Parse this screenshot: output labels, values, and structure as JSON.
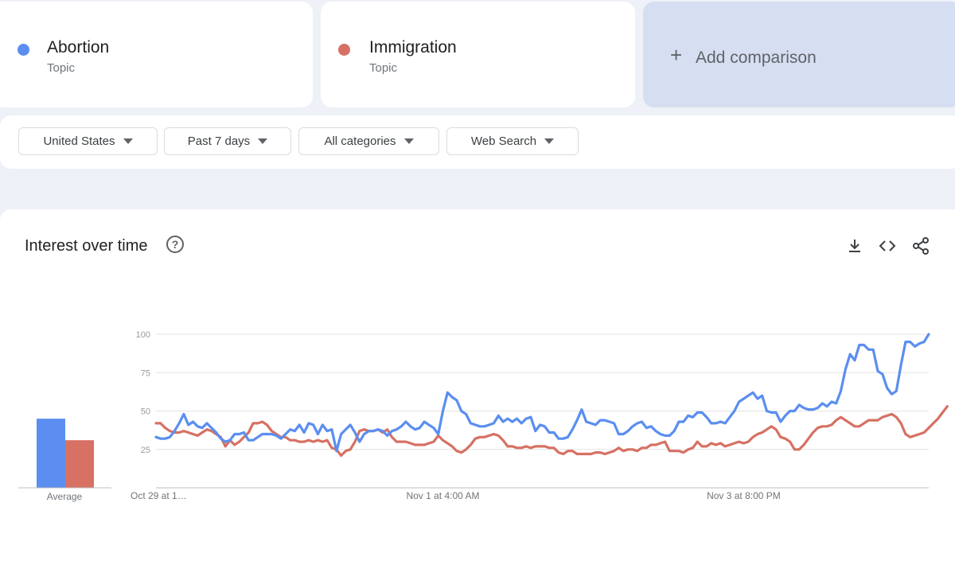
{
  "terms": [
    {
      "name": "Abortion",
      "type": "Topic",
      "color": "#5b8ef0"
    },
    {
      "name": "Immigration",
      "type": "Topic",
      "color": "#d67163"
    }
  ],
  "add_comparison": {
    "icon": "plus-icon",
    "label": "Add comparison"
  },
  "filters": [
    {
      "label": "United States",
      "icon": "caret-down-icon"
    },
    {
      "label": "Past 7 days",
      "icon": "caret-down-icon"
    },
    {
      "label": "All categories",
      "icon": "caret-down-icon"
    },
    {
      "label": "Web Search",
      "icon": "caret-down-icon"
    }
  ],
  "panel": {
    "title": "Interest over time",
    "help_icon": "help-icon",
    "actions": [
      "download-icon",
      "embed-icon",
      "share-icon"
    ]
  },
  "chart_data": {
    "type": "line",
    "ylim": [
      0,
      100
    ],
    "yticks": [
      25,
      50,
      75,
      100
    ],
    "grid": true,
    "x_tick_labels": [
      "Oct 29 at 1…",
      "Nov 1 at 4:00 AM",
      "Nov 3 at 8:00 PM"
    ],
    "average": {
      "label": "Average",
      "values": [
        {
          "series": "Abortion",
          "value": 45
        },
        {
          "series": "Immigration",
          "value": 31
        }
      ]
    },
    "series": [
      {
        "name": "Abortion",
        "color": "#5b8ef0",
        "values": [
          33,
          32,
          32,
          33,
          37,
          42,
          48,
          41,
          43,
          40,
          39,
          42,
          39,
          36,
          32,
          30,
          31,
          35,
          35,
          36,
          31,
          31,
          33,
          35,
          35,
          35,
          34,
          32,
          35,
          38,
          37,
          41,
          36,
          42,
          41,
          35,
          41,
          37,
          38,
          24,
          35,
          38,
          41,
          36,
          30,
          35,
          37,
          37,
          38,
          37,
          34,
          37,
          38,
          40,
          43,
          40,
          38,
          39,
          43,
          41,
          39,
          35,
          50,
          62,
          59,
          57,
          50,
          48,
          42,
          41,
          40,
          40,
          41,
          42,
          47,
          43,
          45,
          43,
          45,
          42,
          45,
          46,
          37,
          41,
          40,
          36,
          36,
          32,
          32,
          33,
          38,
          44,
          51,
          43,
          42,
          41,
          44,
          44,
          43,
          42,
          35,
          35,
          37,
          40,
          42,
          43,
          39,
          40,
          37,
          35,
          34,
          34,
          37,
          43,
          43,
          47,
          46,
          49,
          49,
          46,
          42,
          42,
          43,
          42,
          46,
          50,
          56,
          58,
          60,
          62,
          58,
          60,
          50,
          49,
          49,
          43,
          47,
          50,
          50,
          54,
          52,
          51,
          51,
          52,
          55,
          53,
          56,
          55,
          63,
          77,
          87,
          83,
          93,
          93,
          90,
          90,
          76,
          74,
          65,
          61,
          63,
          80,
          95,
          95,
          92,
          94,
          95,
          100
        ]
      },
      {
        "name": "Immigration",
        "color": "#d67163",
        "values": [
          42,
          42,
          39,
          37,
          36,
          36,
          37,
          36,
          35,
          34,
          36,
          38,
          37,
          35,
          33,
          27,
          31,
          28,
          30,
          33,
          36,
          42,
          42,
          43,
          41,
          37,
          35,
          33,
          33,
          31,
          31,
          30,
          30,
          31,
          30,
          31,
          30,
          31,
          26,
          25,
          21,
          24,
          25,
          30,
          37,
          38,
          37,
          37,
          38,
          36,
          38,
          33,
          30,
          30,
          30,
          29,
          28,
          28,
          28,
          29,
          30,
          34,
          31,
          29,
          27,
          24,
          23,
          25,
          28,
          32,
          33,
          33,
          34,
          35,
          34,
          31,
          27,
          27,
          26,
          26,
          27,
          26,
          27,
          27,
          27,
          26,
          26,
          23,
          22,
          24,
          24,
          22,
          22,
          22,
          22,
          23,
          23,
          22,
          23,
          24,
          26,
          24,
          25,
          25,
          24,
          26,
          26,
          28,
          28,
          29,
          30,
          24,
          24,
          24,
          23,
          25,
          26,
          30,
          27,
          27,
          29,
          28,
          29,
          27,
          28,
          29,
          30,
          29,
          30,
          33,
          35,
          36,
          38,
          40,
          38,
          33,
          32,
          30,
          25,
          25,
          28,
          32,
          36,
          39,
          40,
          40,
          41,
          44,
          46,
          44,
          42,
          40,
          40,
          42,
          44,
          44,
          44,
          46,
          47,
          48,
          46,
          42,
          35,
          33,
          34,
          35,
          36,
          39,
          42,
          45,
          49,
          53
        ]
      }
    ]
  }
}
